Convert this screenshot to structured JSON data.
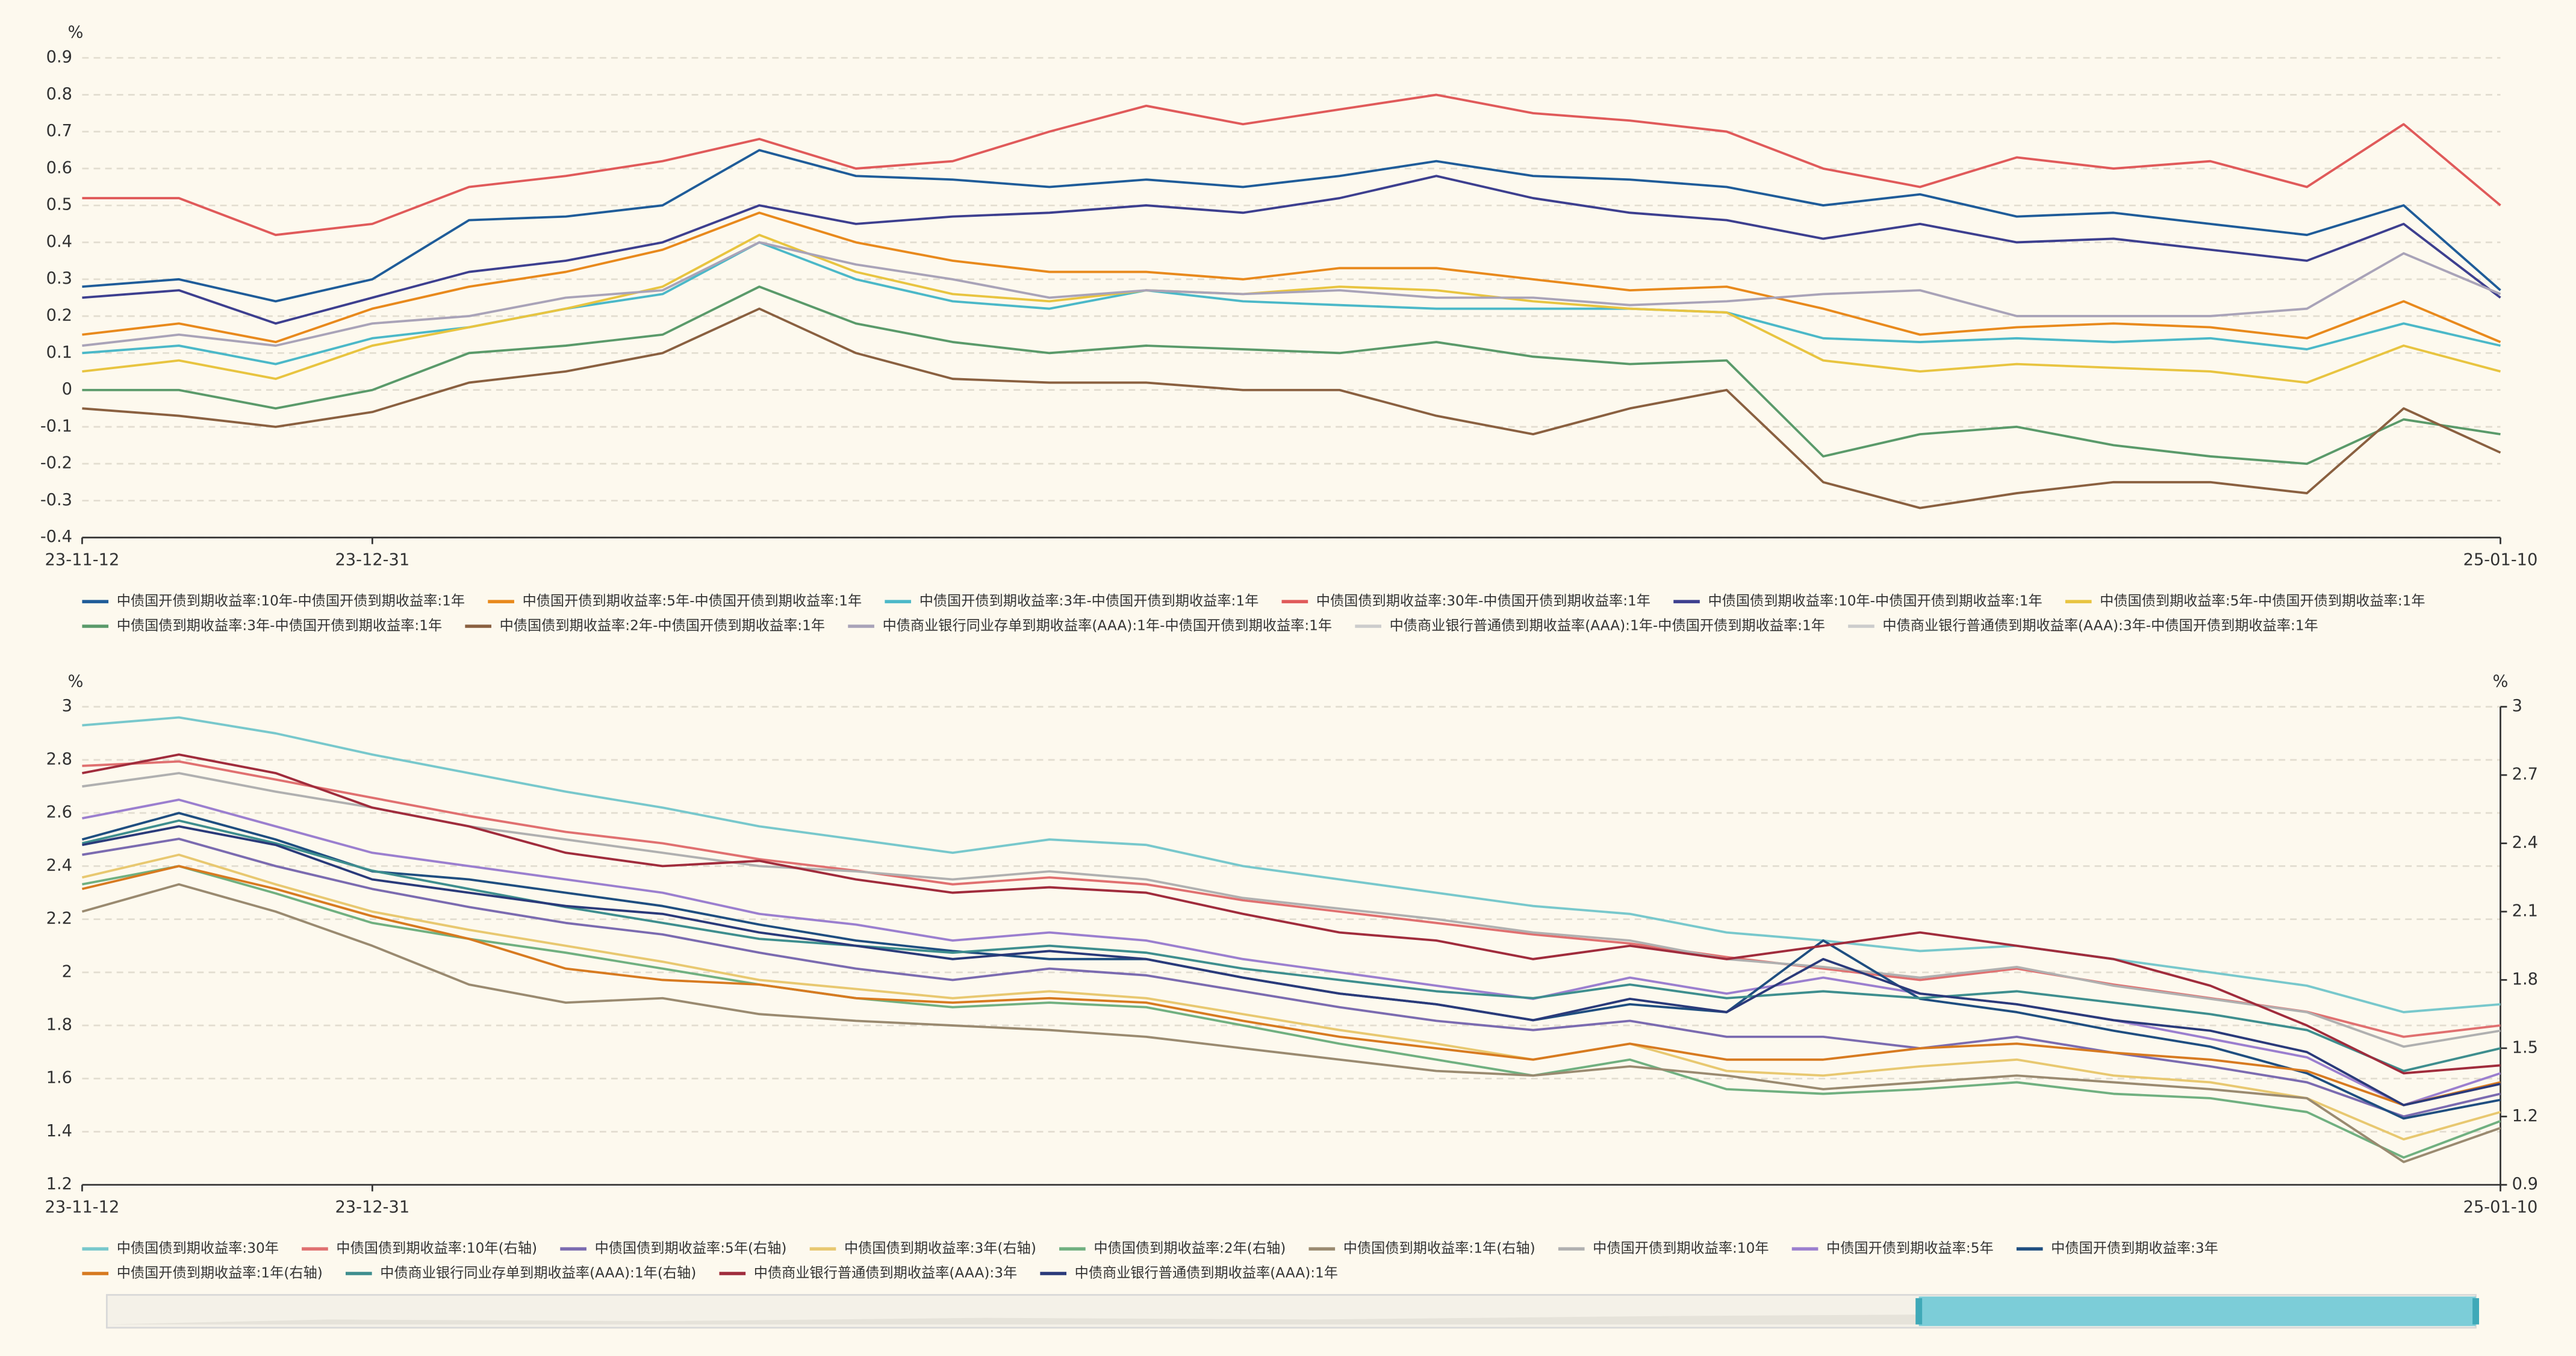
{
  "chart_data": [
    {
      "type": "line",
      "y_unit": "%",
      "grid": true,
      "categories": [
        "23-11-12",
        null,
        null,
        "23-12-31",
        null,
        null,
        null,
        null,
        null,
        null,
        null,
        null,
        null,
        null,
        null,
        null,
        null,
        null,
        null,
        null,
        null,
        null,
        null,
        null,
        null,
        "25-01-10"
      ],
      "ylim": [
        -0.4,
        0.9
      ],
      "yticks": [
        -0.4,
        -0.3,
        -0.2,
        -0.1,
        0,
        0.1,
        0.2,
        0.3,
        0.4,
        0.5,
        0.6,
        0.7,
        0.8,
        0.9
      ],
      "series": [
        {
          "name": "中债国开债到期收益率:10年-中债国开债到期收益率:1年",
          "color": "#1f5c99",
          "visible": true,
          "values": [
            0.28,
            0.3,
            0.24,
            0.3,
            0.46,
            0.47,
            0.5,
            0.65,
            0.58,
            0.57,
            0.55,
            0.57,
            0.55,
            0.58,
            0.62,
            0.58,
            0.57,
            0.55,
            0.5,
            0.53,
            0.47,
            0.48,
            0.45,
            0.42,
            0.5,
            0.27
          ]
        },
        {
          "name": "中债国开债到期收益率:5年-中债国开债到期收益率:1年",
          "color": "#e8891c",
          "visible": true,
          "values": [
            0.15,
            0.18,
            0.13,
            0.22,
            0.28,
            0.32,
            0.38,
            0.48,
            0.4,
            0.35,
            0.32,
            0.32,
            0.3,
            0.33,
            0.33,
            0.3,
            0.27,
            0.28,
            0.22,
            0.15,
            0.17,
            0.18,
            0.17,
            0.14,
            0.24,
            0.13
          ]
        },
        {
          "name": "中债国开债到期收益率:3年-中债国开债到期收益率:1年",
          "color": "#4bb8c8",
          "visible": true,
          "values": [
            0.1,
            0.12,
            0.07,
            0.14,
            0.17,
            0.22,
            0.26,
            0.4,
            0.3,
            0.24,
            0.22,
            0.27,
            0.24,
            0.23,
            0.22,
            0.22,
            0.22,
            0.21,
            0.14,
            0.13,
            0.14,
            0.13,
            0.14,
            0.11,
            0.18,
            0.12
          ]
        },
        {
          "name": "中债国债到期收益率:30年-中债国开债到期收益率:1年",
          "color": "#e05a5a",
          "visible": true,
          "values": [
            0.52,
            0.52,
            0.42,
            0.45,
            0.55,
            0.58,
            0.62,
            0.68,
            0.6,
            0.62,
            0.7,
            0.77,
            0.72,
            0.76,
            0.8,
            0.75,
            0.73,
            0.7,
            0.6,
            0.55,
            0.63,
            0.6,
            0.62,
            0.55,
            0.72,
            0.5
          ]
        },
        {
          "name": "中债国债到期收益率:10年-中债国开债到期收益率:1年",
          "color": "#3d3f8f",
          "visible": true,
          "values": [
            0.25,
            0.27,
            0.18,
            0.25,
            0.32,
            0.35,
            0.4,
            0.5,
            0.45,
            0.47,
            0.48,
            0.5,
            0.48,
            0.52,
            0.58,
            0.52,
            0.48,
            0.46,
            0.41,
            0.45,
            0.4,
            0.41,
            0.38,
            0.35,
            0.45,
            0.25
          ]
        },
        {
          "name": "中债国债到期收益率:5年-中债国开债到期收益率:1年",
          "color": "#e8c440",
          "visible": true,
          "values": [
            0.05,
            0.08,
            0.03,
            0.12,
            0.17,
            0.22,
            0.28,
            0.42,
            0.32,
            0.26,
            0.24,
            0.27,
            0.26,
            0.28,
            0.27,
            0.24,
            0.22,
            0.21,
            0.08,
            0.05,
            0.07,
            0.06,
            0.05,
            0.02,
            0.12,
            0.05
          ]
        },
        {
          "name": "中债国债到期收益率:3年-中债国开债到期收益率:1年",
          "color": "#5a9a6a",
          "visible": true,
          "values": [
            0.0,
            0.0,
            -0.05,
            0.0,
            0.1,
            0.12,
            0.15,
            0.28,
            0.18,
            0.13,
            0.1,
            0.12,
            0.11,
            0.1,
            0.13,
            0.09,
            0.07,
            0.08,
            -0.18,
            -0.12,
            -0.1,
            -0.15,
            -0.18,
            -0.2,
            -0.08,
            -0.12
          ]
        },
        {
          "name": "中债国债到期收益率:2年-中债国开债到期收益率:1年",
          "color": "#8a6040",
          "visible": true,
          "values": [
            -0.05,
            -0.07,
            -0.1,
            -0.06,
            0.02,
            0.05,
            0.1,
            0.22,
            0.1,
            0.03,
            0.02,
            0.02,
            0.0,
            0.0,
            -0.07,
            -0.12,
            -0.05,
            0.0,
            -0.25,
            -0.32,
            -0.28,
            -0.25,
            -0.25,
            -0.28,
            -0.05,
            -0.17
          ]
        },
        {
          "name": "中债商业银行同业存单到期收益率(AAA):1年-中债国开债到期收益率:1年",
          "color": "#a9a3b8",
          "visible": true,
          "values": [
            0.12,
            0.15,
            0.12,
            0.18,
            0.2,
            0.25,
            0.27,
            0.4,
            0.34,
            0.3,
            0.25,
            0.27,
            0.26,
            0.27,
            0.25,
            0.25,
            0.23,
            0.24,
            0.26,
            0.27,
            0.2,
            0.2,
            0.2,
            0.22,
            0.37,
            0.26
          ]
        },
        {
          "name": "中债商业银行普通债到期收益率(AAA):1年-中债国开债到期收益率:1年",
          "color": "#cccccc",
          "visible": false
        },
        {
          "name": "中债商业银行普通债到期收益率(AAA):3年-中债国开债到期收益率:1年",
          "color": "#cccccc",
          "visible": false
        }
      ]
    },
    {
      "type": "line",
      "y_unit": "%",
      "y2_unit": "%",
      "grid": true,
      "categories": [
        "23-11-12",
        null,
        null,
        "23-12-31",
        null,
        null,
        null,
        null,
        null,
        null,
        null,
        null,
        null,
        null,
        null,
        null,
        null,
        null,
        null,
        null,
        null,
        null,
        null,
        null,
        null,
        "25-01-10"
      ],
      "ylim": [
        1.2,
        3
      ],
      "yticks": [
        1.2,
        1.4,
        1.6,
        1.8,
        2,
        2.2,
        2.4,
        2.6,
        2.8,
        3
      ],
      "y2lim": [
        0.9,
        3
      ],
      "y2ticks": [
        0.9,
        1.2,
        1.5,
        1.8,
        2.1,
        2.4,
        2.7,
        3
      ],
      "series": [
        {
          "name": "中债国债到期收益率:30年",
          "color": "#78c8cc",
          "visible": true,
          "values": [
            2.93,
            2.96,
            2.9,
            2.82,
            2.75,
            2.68,
            2.62,
            2.55,
            2.5,
            2.45,
            2.5,
            2.48,
            2.4,
            2.35,
            2.3,
            2.25,
            2.22,
            2.15,
            2.12,
            2.08,
            2.1,
            2.05,
            2.0,
            1.95,
            1.85,
            1.88
          ]
        },
        {
          "name": "中债国债到期收益率:10年(右轴)",
          "color": "#e07070",
          "visible": true,
          "axis": "y2",
          "values": [
            2.74,
            2.76,
            2.68,
            2.6,
            2.52,
            2.45,
            2.4,
            2.33,
            2.28,
            2.22,
            2.25,
            2.22,
            2.15,
            2.1,
            2.05,
            2.0,
            1.96,
            1.9,
            1.85,
            1.8,
            1.85,
            1.78,
            1.72,
            1.66,
            1.55,
            1.6
          ]
        },
        {
          "name": "中债国债到期收益率:5年(右轴)",
          "color": "#7b6bb0",
          "visible": true,
          "axis": "y2",
          "values": [
            2.35,
            2.42,
            2.3,
            2.2,
            2.12,
            2.05,
            2.0,
            1.92,
            1.85,
            1.8,
            1.85,
            1.82,
            1.75,
            1.68,
            1.62,
            1.58,
            1.62,
            1.55,
            1.55,
            1.5,
            1.55,
            1.48,
            1.42,
            1.35,
            1.2,
            1.3
          ]
        },
        {
          "name": "中债国债到期收益率:3年(右轴)",
          "color": "#e8c870",
          "visible": true,
          "axis": "y2",
          "values": [
            2.25,
            2.35,
            2.22,
            2.1,
            2.02,
            1.95,
            1.88,
            1.8,
            1.76,
            1.72,
            1.75,
            1.72,
            1.65,
            1.58,
            1.52,
            1.45,
            1.52,
            1.4,
            1.38,
            1.42,
            1.45,
            1.38,
            1.35,
            1.28,
            1.1,
            1.22
          ]
        },
        {
          "name": "中债国债到期收益率:2年(右轴)",
          "color": "#70b080",
          "visible": true,
          "axis": "y2",
          "values": [
            2.22,
            2.3,
            2.18,
            2.05,
            1.98,
            1.92,
            1.85,
            1.78,
            1.72,
            1.68,
            1.7,
            1.68,
            1.6,
            1.52,
            1.45,
            1.38,
            1.45,
            1.32,
            1.3,
            1.32,
            1.35,
            1.3,
            1.28,
            1.22,
            1.02,
            1.18
          ]
        },
        {
          "name": "中债国债到期收益率:1年(右轴)",
          "color": "#9a8a70",
          "visible": true,
          "axis": "y2",
          "values": [
            2.1,
            2.22,
            2.1,
            1.95,
            1.78,
            1.7,
            1.72,
            1.65,
            1.62,
            1.6,
            1.58,
            1.55,
            1.5,
            1.45,
            1.4,
            1.38,
            1.42,
            1.38,
            1.32,
            1.35,
            1.38,
            1.35,
            1.32,
            1.28,
            1.0,
            1.15
          ]
        },
        {
          "name": "中债国开债到期收益率:10年",
          "color": "#b0b0b0",
          "visible": true,
          "values": [
            2.7,
            2.75,
            2.68,
            2.62,
            2.55,
            2.5,
            2.45,
            2.4,
            2.38,
            2.35,
            2.38,
            2.35,
            2.28,
            2.24,
            2.2,
            2.15,
            2.12,
            2.05,
            2.02,
            1.98,
            2.02,
            1.95,
            1.9,
            1.85,
            1.72,
            1.78
          ]
        },
        {
          "name": "中债国开债到期收益率:5年",
          "color": "#9b7fcf",
          "visible": true,
          "values": [
            2.58,
            2.65,
            2.55,
            2.45,
            2.4,
            2.35,
            2.3,
            2.22,
            2.18,
            2.12,
            2.15,
            2.12,
            2.05,
            2.0,
            1.95,
            1.9,
            1.98,
            1.92,
            1.98,
            1.92,
            1.88,
            1.82,
            1.75,
            1.68,
            1.5,
            1.62
          ]
        },
        {
          "name": "中债国开债到期收益率:3年",
          "color": "#1f4e80",
          "visible": true,
          "values": [
            2.5,
            2.6,
            2.5,
            2.38,
            2.35,
            2.3,
            2.25,
            2.18,
            2.12,
            2.08,
            2.05,
            2.05,
            1.98,
            1.92,
            1.88,
            1.82,
            1.88,
            1.85,
            2.12,
            1.9,
            1.85,
            1.78,
            1.72,
            1.62,
            1.45,
            1.52
          ]
        },
        {
          "name": "中债国开债到期收益率:1年(右轴)",
          "color": "#d77a20",
          "visible": true,
          "axis": "y2",
          "values": [
            2.2,
            2.3,
            2.2,
            2.08,
            1.98,
            1.85,
            1.8,
            1.78,
            1.72,
            1.7,
            1.72,
            1.7,
            1.62,
            1.55,
            1.5,
            1.45,
            1.52,
            1.45,
            1.45,
            1.5,
            1.52,
            1.48,
            1.45,
            1.4,
            1.25,
            1.35
          ]
        },
        {
          "name": "中债商业银行同业存单到期收益率(AAA):1年(右轴)",
          "color": "#3e8e8e",
          "visible": true,
          "axis": "y2",
          "values": [
            2.4,
            2.5,
            2.4,
            2.28,
            2.2,
            2.12,
            2.05,
            1.98,
            1.95,
            1.92,
            1.95,
            1.92,
            1.85,
            1.8,
            1.75,
            1.72,
            1.78,
            1.72,
            1.75,
            1.72,
            1.75,
            1.7,
            1.65,
            1.58,
            1.4,
            1.5
          ]
        },
        {
          "name": "中债商业银行普通债到期收益率(AAA):3年",
          "color": "#a02c3c",
          "visible": true,
          "values": [
            2.75,
            2.82,
            2.75,
            2.62,
            2.55,
            2.45,
            2.4,
            2.42,
            2.35,
            2.3,
            2.32,
            2.3,
            2.22,
            2.15,
            2.12,
            2.05,
            2.1,
            2.05,
            2.1,
            2.15,
            2.1,
            2.05,
            1.95,
            1.8,
            1.62,
            1.65
          ]
        },
        {
          "name": "中债商业银行普通债到期收益率(AAA):1年",
          "color": "#2a3a7a",
          "visible": true,
          "values": [
            2.48,
            2.55,
            2.48,
            2.35,
            2.3,
            2.25,
            2.22,
            2.15,
            2.1,
            2.05,
            2.08,
            2.05,
            1.98,
            1.92,
            1.88,
            1.82,
            1.9,
            1.85,
            2.05,
            1.92,
            1.88,
            1.82,
            1.78,
            1.7,
            1.5,
            1.58
          ]
        }
      ]
    }
  ]
}
